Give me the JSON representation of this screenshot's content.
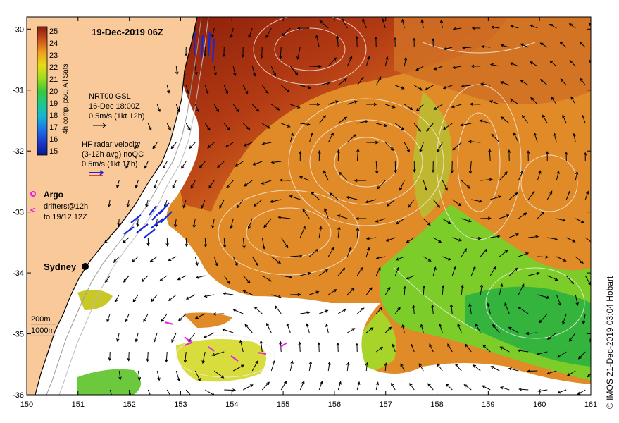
{
  "map": {
    "title": "19-Dec-2019 06Z",
    "credit": "© IMOS 21-Dec-2019 03:04 Hobart",
    "lon_ticks": [
      "150",
      "151",
      "152",
      "153",
      "154",
      "155",
      "156",
      "157",
      "158",
      "159",
      "160",
      "161"
    ],
    "lat_ticks": [
      "-30",
      "-31",
      "-32",
      "-33",
      "-34",
      "-35",
      "-36"
    ],
    "lon_range": [
      150,
      161
    ],
    "lat_range": [
      -36,
      -29.8
    ],
    "colorbar": {
      "label": "4h comp, p50, All Sats",
      "ticks": [
        "25",
        "24",
        "23",
        "22",
        "21",
        "20",
        "19",
        "18",
        "17",
        "16",
        "15"
      ],
      "range": [
        15,
        25
      ],
      "colors": [
        "#0a1a8c",
        "#1a3bc8",
        "#1e73e6",
        "#1ea9e6",
        "#18c8b4",
        "#1ec864",
        "#5ad21e",
        "#a0dc1e",
        "#dcdc14",
        "#f0b41e",
        "#e68c1e",
        "#d2641e",
        "#b43c14",
        "#8c1e0a"
      ]
    },
    "legend_sst": {
      "line1": "NRT00 GSL",
      "line2": "16-Dec 18:00Z",
      "line3": "0.5m/s (1kt 12h)"
    },
    "legend_hf": {
      "line1": "HF radar velocity",
      "line2": "(3-12h avg) noQC",
      "line3": "0.5m/s (1kt 12h)"
    },
    "legend_argo": {
      "label": "Argo",
      "line1": "drifters@12h",
      "line2": "to 19/12 12Z"
    },
    "city": {
      "label": "Sydney",
      "lon": 151.2,
      "lat": -33.87
    },
    "depth_legend": {
      "line1": "200m",
      "line2": "1000m"
    },
    "land_color": "#f9c99a",
    "cloud_color": "#ffffff"
  }
}
